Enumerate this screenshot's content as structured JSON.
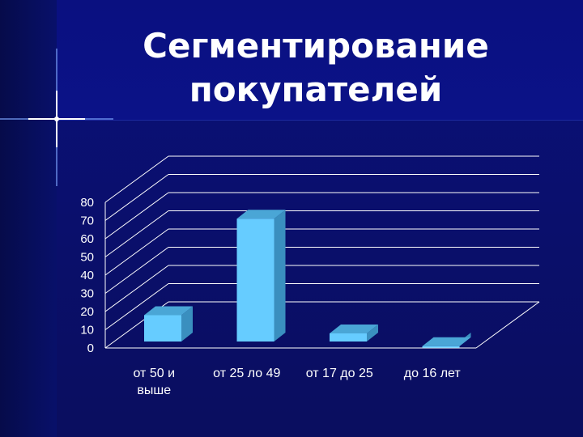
{
  "slide": {
    "title_line1": "Сегментирование",
    "title_line2": "покупателей"
  },
  "chart_data": {
    "type": "bar",
    "title": "Сегментирование покупателей",
    "categories": [
      "от 50 и выше",
      "от 25 ло 49",
      "от 17 до 25",
      "до 16 лет"
    ],
    "category_lines": [
      [
        "от 50 и",
        "выше"
      ],
      [
        "от 25 ло 49"
      ],
      [
        "от 17 до 25"
      ],
      [
        "до 16 лет"
      ]
    ],
    "values": [
      18,
      71,
      8,
      1
    ],
    "y_ticks": [
      "0",
      "10",
      "20",
      "30",
      "40",
      "50",
      "60",
      "70",
      "80"
    ],
    "ylim": [
      0,
      80
    ],
    "grid": true,
    "style": "3d-column",
    "colors": {
      "bar_front": "#66ccff",
      "bar_side": "#3a8fbf",
      "bar_top": "#4aa6d6",
      "grid": "#ffffff",
      "text": "#ffffff"
    }
  }
}
